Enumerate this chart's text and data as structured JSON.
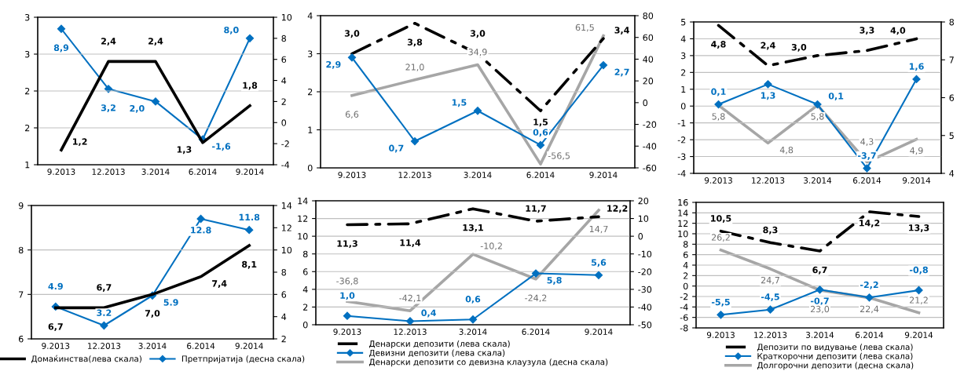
{
  "chart_data": [
    {
      "type": "line",
      "categories": [
        "9.2013",
        "12.2013",
        "3.2014",
        "6.2014",
        "9.2014"
      ],
      "ylim": [
        1,
        3
      ],
      "yticks": [
        1,
        {
          "value": 1.5,
          "label": "2"
        },
        2,
        {
          "value": 2.5,
          "label": "3"
        },
        3
      ],
      "y2lim": [
        -4,
        10
      ],
      "y2ticks": [
        -4,
        -2,
        0,
        2,
        4,
        6,
        8,
        10
      ],
      "grid": "y",
      "legend": false,
      "series": [
        {
          "color": "#000000",
          "values": [
            1.2,
            2.4,
            2.4,
            1.3,
            1.8
          ],
          "value_labels": [
            "1,2",
            "2,4",
            "2,4",
            "1,3",
            "1,8"
          ],
          "line_style": "solid",
          "marker": "none"
        },
        {
          "color": "#0070c0",
          "values": [
            8.9,
            3.2,
            2.0,
            -1.6,
            8.0
          ],
          "value_labels": [
            "8,9",
            "3,2",
            "2,0",
            "-1,6",
            "8,0"
          ],
          "axis": "y2",
          "line_style": "solid",
          "marker": "diamond"
        }
      ]
    },
    {
      "type": "line",
      "categories": [
        "9.2013",
        "12.2013",
        "3.2014",
        "6.2014",
        "9.2014"
      ],
      "ylim": [
        0,
        4
      ],
      "yticks": [
        0,
        1,
        2,
        3,
        4
      ],
      "y2lim": [
        -60,
        80
      ],
      "y2ticks": [
        -60,
        -40,
        -20,
        0,
        20,
        40,
        60,
        80
      ],
      "grid": "y",
      "legend": false,
      "series": [
        {
          "color": "#000000",
          "values": [
            3.0,
            3.8,
            3.0,
            1.5,
            3.4
          ],
          "value_labels": [
            "3,0",
            "3,8",
            "3,0",
            "1,5",
            "3,4"
          ],
          "line_style": "dashdot",
          "marker": "none"
        },
        {
          "color": "#0070c0",
          "values": [
            2.9,
            0.7,
            1.5,
            0.6,
            2.7
          ],
          "value_labels": [
            "2,9",
            "0,7",
            "1,5",
            "0,6",
            "2,7"
          ],
          "line_style": "solid",
          "marker": "diamond"
        },
        {
          "color": "#a6a6a6",
          "values": [
            6.6,
            21.0,
            34.9,
            -56.5,
            61.5
          ],
          "value_labels": [
            "6,6",
            "21,0",
            "34,9",
            "-56,5",
            "61,5"
          ],
          "axis": "y2",
          "line_style": "solid",
          "marker": "none"
        }
      ]
    },
    {
      "type": "line",
      "categories": [
        "9.2013",
        "12.2013",
        "3.2014",
        "6.2014",
        "9.2014"
      ],
      "ylim": [
        -4,
        5
      ],
      "yticks": [
        -4,
        -3,
        -2,
        -1,
        0,
        1,
        2,
        3,
        4,
        5
      ],
      "y2lim": [
        4,
        8
      ],
      "y2ticks": [
        4,
        5,
        6,
        7,
        8
      ],
      "grid": "y",
      "legend": false,
      "series": [
        {
          "color": "#000000",
          "values": [
            4.8,
            2.4,
            3.0,
            3.3,
            4.0
          ],
          "value_labels": [
            "4,8",
            "2,4",
            "3,0",
            "3,3",
            "4,0"
          ],
          "line_style": "dashdot",
          "marker": "none"
        },
        {
          "color": "#0070c0",
          "values": [
            0.1,
            1.3,
            0.1,
            -3.7,
            1.6
          ],
          "value_labels": [
            "0,1",
            "1,3",
            "0,1",
            "-3,7",
            "1,6"
          ],
          "line_style": "solid",
          "marker": "diamond"
        },
        {
          "color": "#a6a6a6",
          "values": [
            5.8,
            4.8,
            5.8,
            4.3,
            4.9
          ],
          "value_labels": [
            "5,8",
            "4,8",
            "5,8",
            "4,3",
            "4,9"
          ],
          "axis": "y2",
          "line_style": "solid",
          "marker": "none"
        }
      ]
    },
    {
      "type": "line",
      "categories": [
        "9.2013",
        "12.2013",
        "3.2014",
        "6.2014",
        "9.2014"
      ],
      "ylim": [
        6,
        9
      ],
      "yticks": [
        6,
        7,
        8,
        9
      ],
      "y2lim": [
        2,
        14
      ],
      "y2ticks": [
        2,
        4,
        6,
        8,
        10,
        12,
        14
      ],
      "grid": "y",
      "legend": "bottom",
      "series": [
        {
          "name": "Домаќинства(лева скала)",
          "color": "#000000",
          "values": [
            6.7,
            6.7,
            7.0,
            7.4,
            8.1
          ],
          "value_labels": [
            "6,7",
            "6,7",
            "7,0",
            "7,4",
            "8,1"
          ],
          "line_style": "solid",
          "marker": "none"
        },
        {
          "name": "Претпријатија (десна скала)",
          "color": "#0070c0",
          "values": [
            4.9,
            3.2,
            5.9,
            12.8,
            11.8
          ],
          "value_labels": [
            "4.9",
            "3.2",
            "5.9",
            "12.8",
            "11.8"
          ],
          "axis": "y2",
          "line_style": "solid",
          "marker": "diamond"
        }
      ]
    },
    {
      "type": "line",
      "categories": [
        "9.2013",
        "12.2013",
        "3.2014",
        "6.2014",
        "9.2014"
      ],
      "ylim": [
        0,
        14
      ],
      "yticks": [
        0,
        2,
        4,
        6,
        8,
        10,
        12,
        14
      ],
      "y2lim": [
        -50,
        20
      ],
      "y2ticks": [
        -50,
        -40,
        -30,
        -20,
        -10,
        0,
        10,
        20
      ],
      "grid": "y",
      "legend": "bottom",
      "series": [
        {
          "name": "Денарски депозити (лева скала)",
          "color": "#000000",
          "values": [
            11.3,
            11.4,
            13.1,
            11.7,
            12.2
          ],
          "value_labels": [
            "11,3",
            "11,4",
            "13,1",
            "11,7",
            "12,2"
          ],
          "line_style": "dashdot",
          "marker": "none"
        },
        {
          "name": "Девизни депозити (лева скала)",
          "color": "#0070c0",
          "values": [
            1.0,
            0.4,
            0.6,
            5.8,
            5.6
          ],
          "value_labels": [
            "1,0",
            "0,4",
            "0,6",
            "5,8",
            "5,6"
          ],
          "line_style": "solid",
          "marker": "diamond"
        },
        {
          "name": "Денарски депозити со девизна клаузула (десна скала)",
          "color": "#a6a6a6",
          "values": [
            -36.8,
            -42.1,
            -10.2,
            -24.2,
            14.7
          ],
          "value_labels": [
            "-36,8",
            "-42,1",
            "-10,2",
            "-24,2",
            "14,7"
          ],
          "axis": "y2",
          "line_style": "solid",
          "marker": "none"
        }
      ]
    },
    {
      "type": "line",
      "categories": [
        "9.2013",
        "12.2013",
        "3.2014",
        "6.2014",
        "9.2014"
      ],
      "ylim": [
        -8,
        16
      ],
      "yticks": [
        -8,
        -6,
        -4,
        -2,
        0,
        2,
        4,
        6,
        8,
        10,
        12,
        14,
        16
      ],
      "y2lim": [
        20,
        30
      ],
      "tick_labels": "x y",
      "grid": "y",
      "legend": "bottom",
      "series": [
        {
          "name": "Депозити по видување (лева скала)",
          "color": "#000000",
          "values": [
            10.5,
            8.3,
            6.7,
            14.2,
            13.3
          ],
          "value_labels": [
            "10,5",
            "8,3",
            "6,7",
            "14,2",
            "13,3"
          ],
          "line_style": "dashdot",
          "marker": "none"
        },
        {
          "name": "Краткорочни депозити (лева скала)",
          "color": "#0070c0",
          "values": [
            -5.5,
            -4.5,
            -0.7,
            -2.2,
            -0.8
          ],
          "value_labels": [
            "-5,5",
            "-4,5",
            "-0,7",
            "-2,2",
            "-0,8"
          ],
          "line_style": "solid",
          "marker": "diamond"
        },
        {
          "name": "Долгорочни депозити (десна скала)",
          "color": "#a6a6a6",
          "values": [
            26.2,
            24.7,
            23.0,
            22.4,
            21.2
          ],
          "value_labels": [
            "26,2",
            "24,7",
            "23,0",
            "22,4",
            "21,2"
          ],
          "axis": "y2",
          "line_style": "solid",
          "marker": "none"
        }
      ]
    }
  ]
}
